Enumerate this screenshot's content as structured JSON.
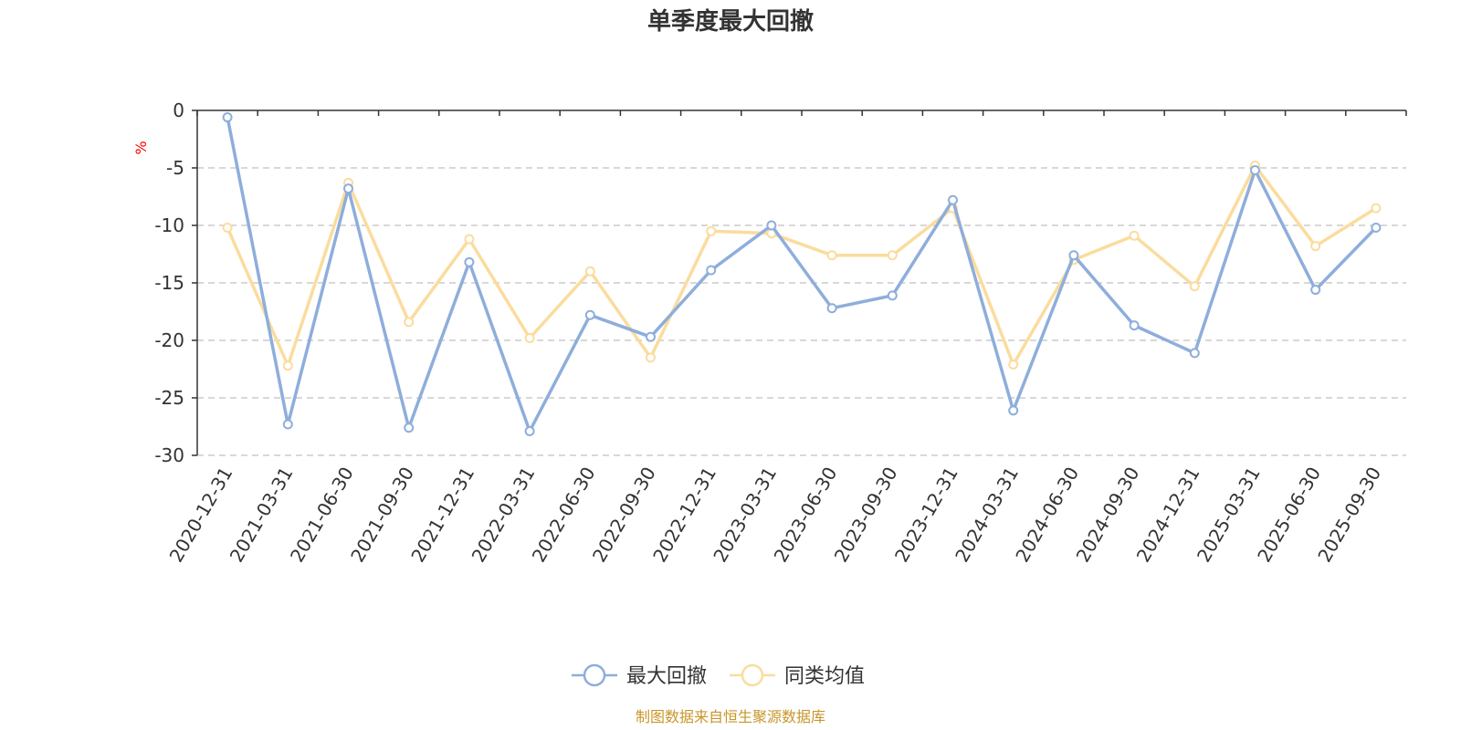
{
  "chart_data": {
    "type": "line",
    "title": "单季度最大回撤",
    "ylabel": "%",
    "ylim": [
      -30,
      0
    ],
    "yticks": [
      0,
      -5,
      -10,
      -15,
      -20,
      -25,
      -30
    ],
    "categories": [
      "2020-12-31",
      "2021-03-31",
      "2021-06-30",
      "2021-09-30",
      "2021-12-31",
      "2022-03-31",
      "2022-06-30",
      "2022-09-30",
      "2022-12-31",
      "2023-03-31",
      "2023-06-30",
      "2023-09-30",
      "2023-12-31",
      "2024-03-31",
      "2024-06-30",
      "2024-09-30",
      "2024-12-31",
      "2025-03-31",
      "2025-06-30",
      "2025-09-30"
    ],
    "series": [
      {
        "name": "最大回撤",
        "color": "#8eaedb",
        "values": [
          -0.6,
          -27.3,
          -6.8,
          -27.6,
          -13.2,
          -27.9,
          -17.8,
          -19.7,
          -13.9,
          -10.0,
          -17.2,
          -16.1,
          -7.8,
          -26.1,
          -12.6,
          -18.7,
          -21.1,
          -5.2,
          -15.6,
          -10.2
        ]
      },
      {
        "name": "同类均值",
        "color": "#fbdc9e",
        "values": [
          -10.2,
          -22.2,
          -6.3,
          -18.4,
          -11.2,
          -19.8,
          -14.0,
          -21.5,
          -10.5,
          -10.7,
          -12.6,
          -12.6,
          -8.5,
          -22.1,
          -13.0,
          -10.9,
          -15.3,
          -4.8,
          -11.8,
          -8.5
        ]
      }
    ],
    "grid": true,
    "legend_position": "bottom"
  },
  "source_note": "制图数据来自恒生聚源数据库"
}
